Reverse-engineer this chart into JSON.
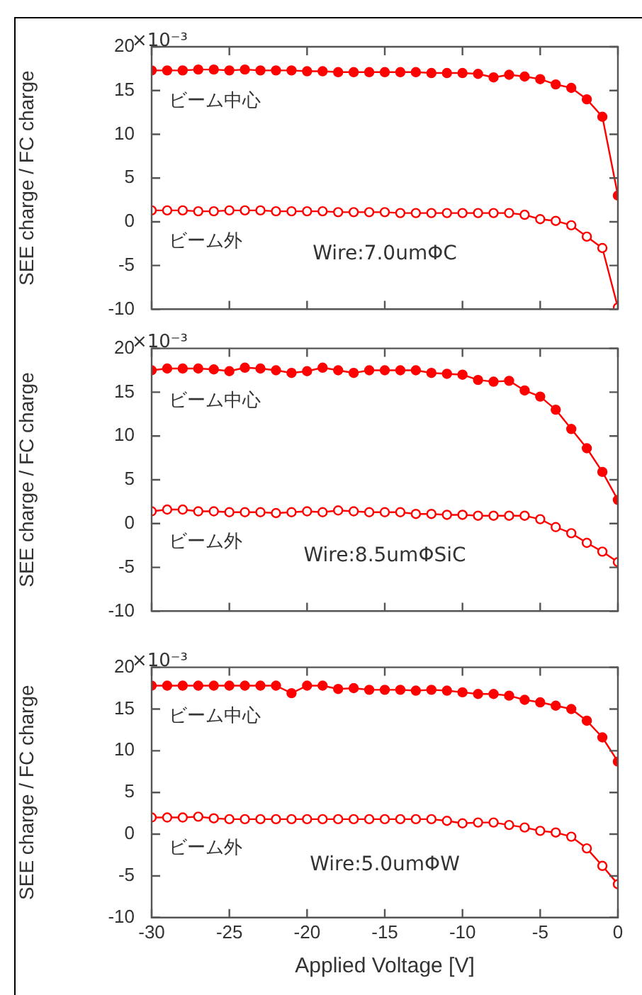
{
  "chart_data": [
    {
      "type": "line",
      "ylabel": "SEE charge / FC charge",
      "marker": "circle",
      "tick_labels": "y",
      "x": [
        -30,
        -29,
        -28,
        -27,
        -26,
        -25,
        -24,
        -23,
        -22,
        -21,
        -20,
        -19,
        -18,
        -17,
        -16,
        -15,
        -14,
        -13,
        -12,
        -11,
        -10,
        -9,
        -8,
        -7,
        -6,
        -5,
        -4,
        -3,
        -2,
        -1,
        0
      ],
      "xlim": [
        -30,
        0
      ],
      "xticks": [
        -30,
        -25,
        -20,
        -15,
        -10,
        -5,
        0
      ],
      "ylim": [
        -10,
        20
      ],
      "yticks": [
        -10,
        -5,
        0,
        5,
        10,
        15,
        20
      ],
      "annotations": [
        "Wire:7.0umΦC",
        "×10⁻³"
      ],
      "series": [
        {
          "name": "ビーム中心",
          "color": "#ff0000",
          "values": [
            17.3,
            17.3,
            17.3,
            17.4,
            17.4,
            17.3,
            17.4,
            17.3,
            17.3,
            17.3,
            17.2,
            17.2,
            17.1,
            17.1,
            17.1,
            17.1,
            17.1,
            17.1,
            17.0,
            17.0,
            17.0,
            16.9,
            16.5,
            16.8,
            16.6,
            16.3,
            15.7,
            15.3,
            14.0,
            12.0,
            3.0
          ]
        },
        {
          "name": "ビーム外",
          "color": "#ff0000",
          "values": [
            1.3,
            1.3,
            1.3,
            1.2,
            1.2,
            1.3,
            1.3,
            1.3,
            1.2,
            1.2,
            1.2,
            1.2,
            1.1,
            1.1,
            1.1,
            1.1,
            1.0,
            1.0,
            1.0,
            1.0,
            1.0,
            1.0,
            1.0,
            1.0,
            0.8,
            0.3,
            0.1,
            -0.4,
            -1.7,
            -3.0,
            -9.8
          ]
        }
      ]
    },
    {
      "type": "line",
      "ylabel": "SEE charge / FC charge",
      "marker": "circle",
      "tick_labels": "y",
      "x": [
        -30,
        -29,
        -28,
        -27,
        -26,
        -25,
        -24,
        -23,
        -22,
        -21,
        -20,
        -19,
        -18,
        -17,
        -16,
        -15,
        -14,
        -13,
        -12,
        -11,
        -10,
        -9,
        -8,
        -7,
        -6,
        -5,
        -4,
        -3,
        -2,
        -1,
        0
      ],
      "xlim": [
        -30,
        0
      ],
      "xticks": [
        -30,
        -25,
        -20,
        -15,
        -10,
        -5,
        0
      ],
      "ylim": [
        -10,
        20
      ],
      "yticks": [
        -10,
        -5,
        0,
        5,
        10,
        15,
        20
      ],
      "annotations": [
        "Wire:8.5umΦSiC",
        "×10⁻³"
      ],
      "series": [
        {
          "name": "ビーム中心",
          "color": "#ff0000",
          "values": [
            17.5,
            17.7,
            17.7,
            17.7,
            17.6,
            17.4,
            17.8,
            17.7,
            17.5,
            17.2,
            17.4,
            17.8,
            17.5,
            17.2,
            17.5,
            17.5,
            17.5,
            17.5,
            17.2,
            17.1,
            17.0,
            16.4,
            16.2,
            16.3,
            15.2,
            14.5,
            13.0,
            10.8,
            8.6,
            5.9,
            2.7
          ]
        },
        {
          "name": "ビーム外",
          "color": "#ff0000",
          "values": [
            1.4,
            1.6,
            1.6,
            1.4,
            1.4,
            1.3,
            1.3,
            1.3,
            1.2,
            1.3,
            1.4,
            1.3,
            1.5,
            1.4,
            1.3,
            1.3,
            1.3,
            1.1,
            1.1,
            1.0,
            1.0,
            0.9,
            0.9,
            0.9,
            0.9,
            0.5,
            -0.4,
            -1.1,
            -2.2,
            -3.2,
            -4.4
          ]
        }
      ]
    },
    {
      "type": "line",
      "ylabel": "SEE charge / FC charge",
      "xlabel": "Applied Voltage [V]",
      "marker": "circle",
      "x": [
        -30,
        -29,
        -28,
        -27,
        -26,
        -25,
        -24,
        -23,
        -22,
        -21,
        -20,
        -19,
        -18,
        -17,
        -16,
        -15,
        -14,
        -13,
        -12,
        -11,
        -10,
        -9,
        -8,
        -7,
        -6,
        -5,
        -4,
        -3,
        -2,
        -1,
        0
      ],
      "xlim": [
        -30,
        0
      ],
      "xticks": [
        -30,
        -25,
        -20,
        -15,
        -10,
        -5,
        0
      ],
      "ylim": [
        -10,
        20
      ],
      "yticks": [
        -10,
        -5,
        0,
        5,
        10,
        15,
        20
      ],
      "annotations": [
        "Wire:5.0umΦW",
        "×10⁻³"
      ],
      "series": [
        {
          "name": "ビーム中心",
          "color": "#ff0000",
          "values": [
            17.8,
            17.8,
            17.8,
            17.8,
            17.8,
            17.8,
            17.8,
            17.8,
            17.8,
            16.9,
            17.8,
            17.8,
            17.4,
            17.5,
            17.3,
            17.3,
            17.3,
            17.2,
            17.3,
            17.2,
            17.0,
            16.8,
            16.8,
            16.6,
            16.1,
            15.8,
            15.4,
            15.0,
            13.6,
            11.6,
            8.7
          ]
        },
        {
          "name": "ビーム外",
          "color": "#ff0000",
          "values": [
            2.0,
            2.0,
            2.0,
            2.1,
            1.9,
            1.8,
            1.8,
            1.8,
            1.8,
            1.8,
            1.8,
            1.8,
            1.8,
            1.8,
            1.8,
            1.8,
            1.8,
            1.8,
            1.8,
            1.6,
            1.3,
            1.4,
            1.4,
            1.1,
            0.8,
            0.4,
            0.2,
            -0.3,
            -1.7,
            -3.8,
            -6.0
          ]
        }
      ]
    }
  ]
}
